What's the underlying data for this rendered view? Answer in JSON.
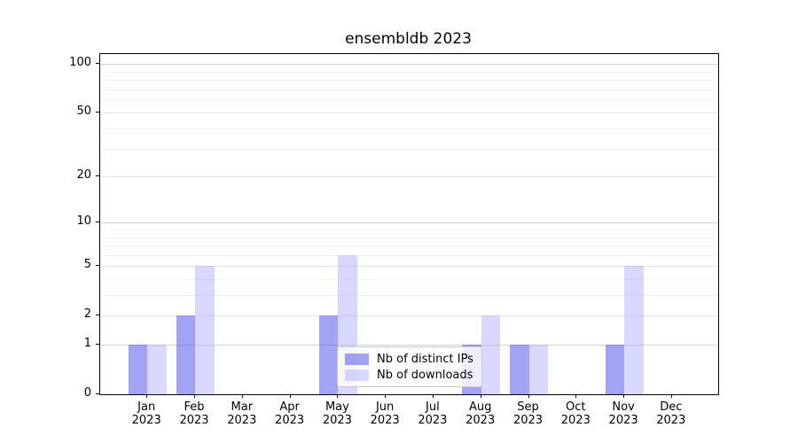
{
  "chart_data": {
    "type": "bar",
    "title": "ensembldb 2023",
    "categories": [
      "Jan",
      "Feb",
      "Mar",
      "Apr",
      "May",
      "Jun",
      "Jul",
      "Aug",
      "Sep",
      "Oct",
      "Nov",
      "Dec"
    ],
    "year": "2023",
    "series": [
      {
        "name": "Nb of distinct IPs",
        "fill": "rgba(60,60,235,0.47)",
        "values": [
          1,
          2,
          0,
          0,
          2,
          0,
          0,
          1,
          1,
          0,
          1,
          0
        ]
      },
      {
        "name": "Nb of downloads",
        "fill": "rgba(170,170,255,0.47)",
        "values": [
          1,
          5,
          0,
          0,
          6,
          0,
          0,
          2,
          1,
          0,
          5,
          0
        ]
      }
    ],
    "y_axis": {
      "scale": "log1p",
      "ticks": [
        0,
        1,
        2,
        5,
        10,
        20,
        50,
        100
      ],
      "emphasized_ticks": [
        1,
        10,
        100
      ],
      "minor_ticks": [
        3,
        4,
        6,
        7,
        8,
        9,
        30,
        40,
        60,
        70,
        80,
        90
      ],
      "max": 115
    },
    "legend": {
      "position": "lower-center"
    }
  }
}
